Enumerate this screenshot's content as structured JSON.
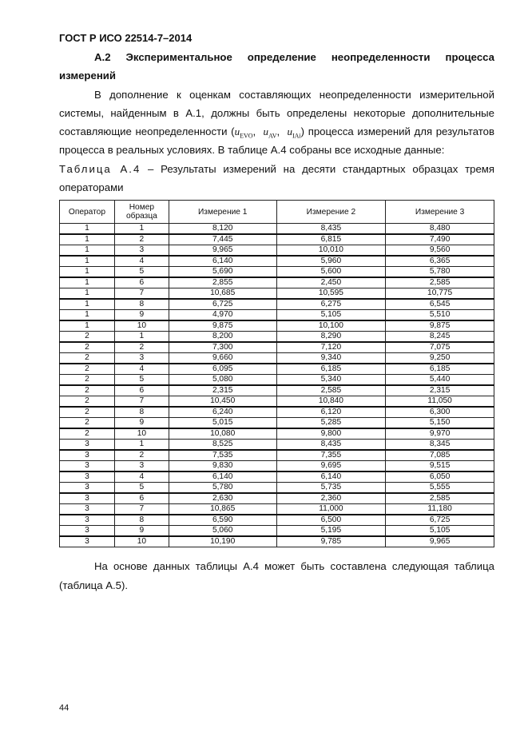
{
  "header": "ГОСТ Р ИСО 22514-7–2014",
  "section": {
    "number": "А.2",
    "title_line1": "Экспериментальное определение неопределенности процесса",
    "title_line2": "измерений"
  },
  "para1": {
    "before": "В дополнение к оценкам составляющих неопределенности измерительной системы, найденным в А.1, должны быть определены некоторые дополнительные составляющие неопределенности (",
    "u1": "EVO",
    "u2": "AV",
    "u3": "IAi",
    "after": ") процесса измерений для результатов процесса в реальных условиях. В таблице А.4 собраны все исходные данные:",
    "sym": "u"
  },
  "caption": {
    "label": "Таблица А.4",
    "text": " – Результаты измерений на десяти стандартных образцах тремя операторами"
  },
  "table": {
    "headers": [
      "Оператор",
      "Номер образца",
      "Измерение 1",
      "Измерение 2",
      "Измерение 3"
    ],
    "rows": [
      [
        "1",
        "1",
        "8,120",
        "8,435",
        "8,480"
      ],
      [
        "1",
        "2",
        "7,445",
        "6,815",
        "7,490"
      ],
      [
        "1",
        "3",
        "9,965",
        "10,010",
        "9,560"
      ],
      [
        "1",
        "4",
        "6,140",
        "5,960",
        "6,365"
      ],
      [
        "1",
        "5",
        "5,690",
        "5,600",
        "5,780"
      ],
      [
        "1",
        "6",
        "2,855",
        "2,450",
        "2,585"
      ],
      [
        "1",
        "7",
        "10,685",
        "10,595",
        "10,775"
      ],
      [
        "1",
        "8",
        "6,725",
        "6,275",
        "6,545"
      ],
      [
        "1",
        "9",
        "4,970",
        "5,105",
        "5,510"
      ],
      [
        "1",
        "10",
        "9,875",
        "10,100",
        "9,875"
      ],
      [
        "2",
        "1",
        "8,200",
        "8,290",
        "8,245"
      ],
      [
        "2",
        "2",
        "7,300",
        "7,120",
        "7,075"
      ],
      [
        "2",
        "3",
        "9,660",
        "9,340",
        "9,250"
      ],
      [
        "2",
        "4",
        "6,095",
        "6,185",
        "6,185"
      ],
      [
        "2",
        "5",
        "5,080",
        "5,340",
        "5,440"
      ],
      [
        "2",
        "6",
        "2,315",
        "2,585",
        "2,315"
      ],
      [
        "2",
        "7",
        "10,450",
        "10,840",
        "11,050"
      ],
      [
        "2",
        "8",
        "6,240",
        "6,120",
        "6,300"
      ],
      [
        "2",
        "9",
        "5,015",
        "5,285",
        "5,150"
      ],
      [
        "2",
        "10",
        "10,080",
        "9,800",
        "9,970"
      ],
      [
        "3",
        "1",
        "8,525",
        "8,435",
        "8,345"
      ],
      [
        "3",
        "2",
        "7,535",
        "7,355",
        "7,085"
      ],
      [
        "3",
        "3",
        "9,830",
        "9,695",
        "9,515"
      ],
      [
        "3",
        "4",
        "6,140",
        "6,140",
        "6,050"
      ],
      [
        "3",
        "5",
        "5,780",
        "5,735",
        "5,555"
      ],
      [
        "3",
        "6",
        "2,630",
        "2,360",
        "2,585"
      ],
      [
        "3",
        "7",
        "10,865",
        "11,000",
        "11,180"
      ],
      [
        "3",
        "8",
        "6,590",
        "6,500",
        "6,725"
      ],
      [
        "3",
        "9",
        "5,060",
        "5,195",
        "5,105"
      ],
      [
        "3",
        "10",
        "10,190",
        "9,785",
        "9,965"
      ]
    ]
  },
  "para2": "На основе данных таблицы А.4 может быть составлена следующая таблица (таблица А.5).",
  "page_number": "44"
}
